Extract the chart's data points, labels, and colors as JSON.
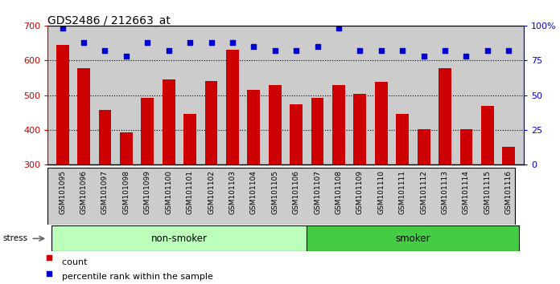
{
  "title": "GDS2486 / 212663_at",
  "categories": [
    "GSM101095",
    "GSM101096",
    "GSM101097",
    "GSM101098",
    "GSM101099",
    "GSM101100",
    "GSM101101",
    "GSM101102",
    "GSM101103",
    "GSM101104",
    "GSM101105",
    "GSM101106",
    "GSM101107",
    "GSM101108",
    "GSM101109",
    "GSM101110",
    "GSM101111",
    "GSM101112",
    "GSM101113",
    "GSM101114",
    "GSM101115",
    "GSM101116"
  ],
  "bar_values": [
    645,
    578,
    458,
    392,
    492,
    545,
    445,
    540,
    630,
    515,
    528,
    474,
    492,
    530,
    504,
    538,
    445,
    402,
    578,
    403,
    468,
    352
  ],
  "bar_color": "#cc0000",
  "percentile_values": [
    98,
    88,
    82,
    78,
    88,
    82,
    88,
    88,
    88,
    85,
    82,
    82,
    85,
    98,
    82,
    82,
    82,
    78,
    82,
    78,
    82,
    82
  ],
  "percentile_color": "#0000cc",
  "ylim_left": [
    300,
    700
  ],
  "ylim_right": [
    0,
    100
  ],
  "yticks_left": [
    300,
    400,
    500,
    600,
    700
  ],
  "yticks_right": [
    0,
    25,
    50,
    75,
    100
  ],
  "grid_values": [
    400,
    500,
    600
  ],
  "non_smoker_count": 12,
  "smoker_count": 10,
  "non_smoker_color": "#bbffbb",
  "smoker_color": "#44cc44",
  "non_smoker_label": "non-smoker",
  "smoker_label": "smoker",
  "stress_label": "stress",
  "legend_count_label": "count",
  "legend_pct_label": "percentile rank within the sample",
  "plot_bg_color": "#cccccc",
  "left_axis_color": "#cc0000",
  "right_axis_color": "#0000cc"
}
